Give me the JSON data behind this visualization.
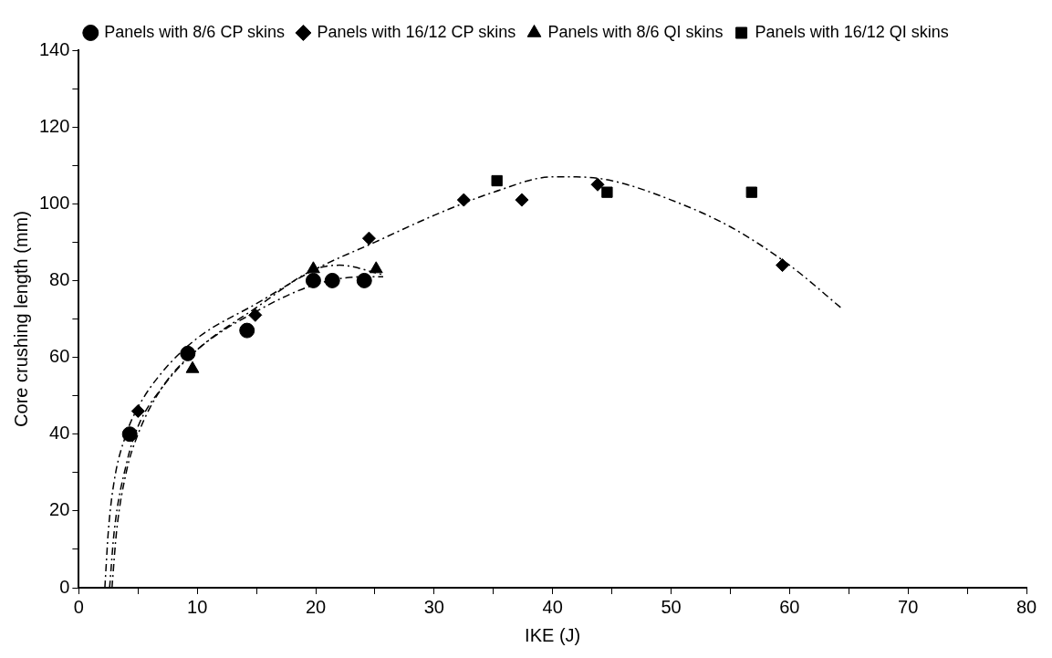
{
  "chart_data": {
    "type": "scatter",
    "xlabel": "IKE (J)",
    "ylabel": "Core crushing length (mm)",
    "xlim": [
      0,
      80
    ],
    "xticks": [
      0,
      {
        "value": 5,
        "label": null
      },
      10,
      {
        "value": 15,
        "label": null
      },
      20,
      {
        "value": 25,
        "label": null
      },
      30,
      {
        "value": 35,
        "label": null
      },
      40,
      {
        "value": 45,
        "label": null
      },
      50,
      {
        "value": 55,
        "label": null
      },
      60,
      {
        "value": 65,
        "label": null
      },
      70,
      {
        "value": 75,
        "label": null
      },
      80
    ],
    "ylim": [
      0,
      140
    ],
    "yticks": [
      0,
      {
        "value": 10,
        "label": null
      },
      20,
      {
        "value": 30,
        "label": null
      },
      40,
      {
        "value": 50,
        "label": null
      },
      60,
      {
        "value": 70,
        "label": null
      },
      80,
      {
        "value": 90,
        "label": null
      },
      100,
      {
        "value": 110,
        "label": null
      },
      120,
      {
        "value": 130,
        "label": null
      },
      140
    ],
    "grid": false,
    "legend": "top",
    "series": [
      {
        "name": "Panels with 8/6 CP skins",
        "color": "#000000",
        "marker": "circle",
        "x": [
          4.3,
          9.2,
          14.2,
          19.8,
          21.4,
          24.1
        ],
        "values": [
          40,
          61,
          67,
          80,
          80,
          80
        ]
      },
      {
        "name": "Panels with 16/12 CP skins",
        "color": "#000000",
        "marker": "diamond",
        "x": [
          5,
          14.9,
          24.5,
          32.5,
          37.4,
          43.8,
          59.4
        ],
        "values": [
          46,
          71,
          91,
          101,
          101,
          105,
          84
        ]
      },
      {
        "name": "Panels with 8/6 QI skins",
        "color": "#000000",
        "marker": "triangle",
        "x": [
          9.6,
          19.8,
          25.1
        ],
        "values": [
          57,
          83,
          83
        ]
      },
      {
        "name": "Panels with 16/12 QI skins",
        "color": "#000000",
        "marker": "square",
        "x": [
          35.3,
          44.6,
          56.8
        ],
        "values": [
          106,
          103,
          103
        ]
      },
      {
        "type": "line",
        "color": "#000000",
        "marker": "none",
        "line_style": "dashed",
        "x": [
          2.8,
          3.2,
          4,
          5,
          7,
          10,
          15,
          20,
          24,
          25.7
        ],
        "values": [
          0,
          15,
          30,
          40,
          52,
          62,
          72,
          79,
          81,
          81
        ]
      },
      {
        "type": "line",
        "color": "#000000",
        "marker": "none",
        "line_style": "dashed",
        "x": [
          2.6,
          3,
          4,
          5,
          7,
          10,
          15,
          20,
          22,
          25.7
        ],
        "values": [
          0,
          15,
          32,
          42,
          52,
          62,
          73,
          83,
          84,
          81.5
        ]
      },
      {
        "type": "line",
        "color": "#000000",
        "marker": "none",
        "line_style": "dashed",
        "x": [
          2.2,
          2.5,
          3,
          4,
          5,
          7,
          10,
          15,
          20,
          25,
          30,
          35,
          40,
          42,
          45,
          50,
          55,
          60,
          64.5
        ],
        "values": [
          0,
          15,
          28,
          40,
          47,
          56,
          65,
          74,
          83,
          90,
          97,
          103,
          107,
          107,
          106,
          101,
          94,
          84,
          72.5
        ]
      }
    ]
  }
}
